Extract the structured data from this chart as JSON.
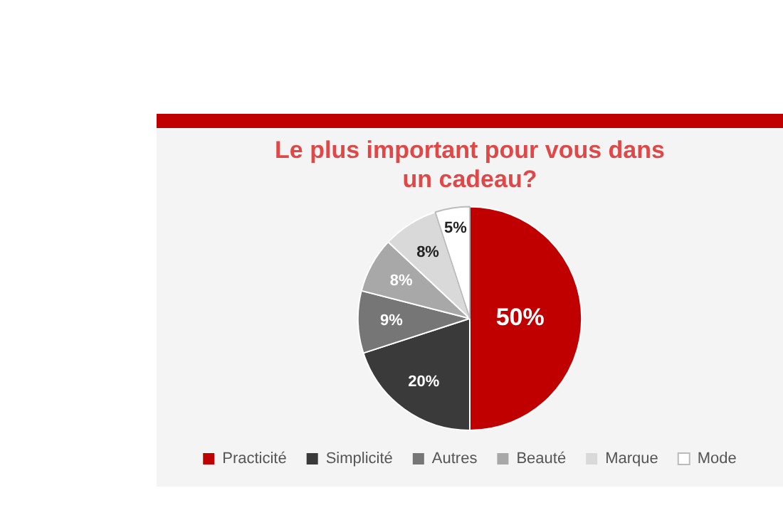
{
  "chart_data": {
    "type": "pie",
    "title": "Le plus important pour vous dans un cadeau?",
    "categories": [
      "Practicité",
      "Simplicité",
      "Autres",
      "Beauté",
      "Marque",
      "Mode"
    ],
    "values": [
      50,
      20,
      9,
      8,
      8,
      5
    ],
    "colors": [
      "#c00000",
      "#3a3a3a",
      "#767676",
      "#a8a8a8",
      "#d9d9d9",
      "#ffffff"
    ],
    "value_labels": [
      "50%",
      "20%",
      "9%",
      "8%",
      "8%",
      "5%"
    ],
    "legend": "bottom"
  }
}
